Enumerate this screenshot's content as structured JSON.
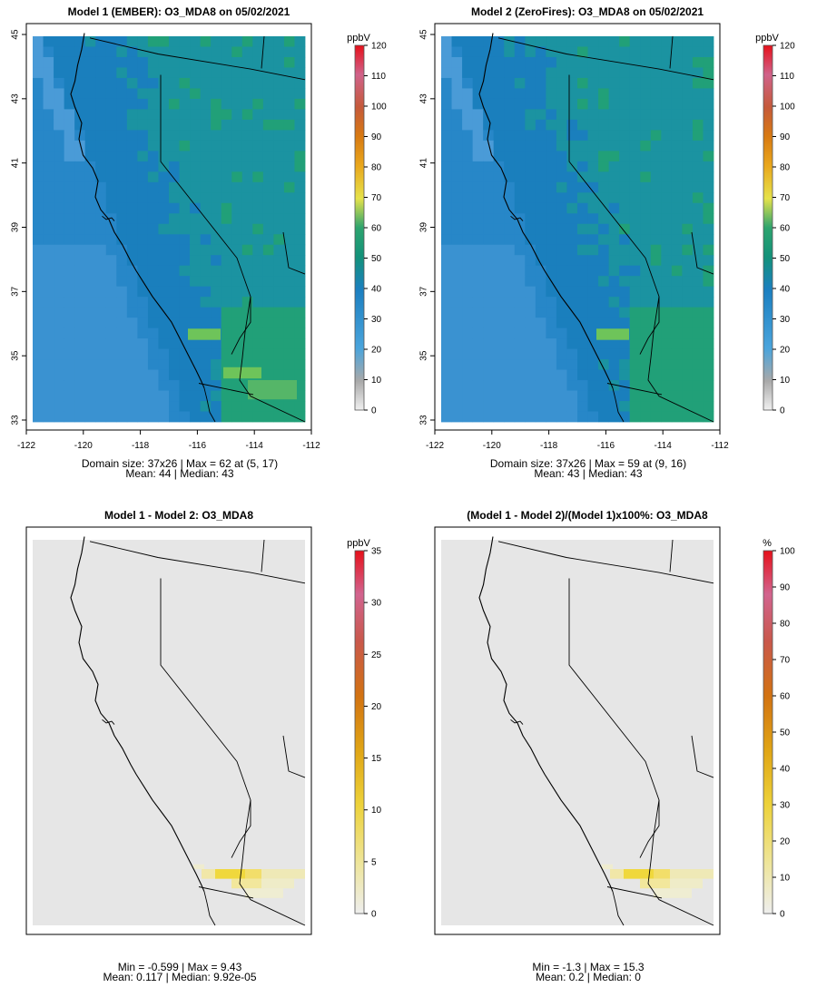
{
  "panels": [
    {
      "id": "p1",
      "title": "Model 1 (EMBER): O3_MDA8 on 05/02/2021",
      "type": "field",
      "stats_line1": "Domain size: 37x26 | Max = 62 at (5, 17)",
      "stats_line2": "Mean: 44 |  Median: 43",
      "show_axes": true,
      "legend": {
        "unit": "ppbV",
        "ticks": [
          "0",
          "10",
          "20",
          "30",
          "40",
          "50",
          "60",
          "70",
          "80",
          "90",
          "100",
          "110",
          "120"
        ],
        "range": [
          0,
          120
        ],
        "palette": "full"
      }
    },
    {
      "id": "p2",
      "title": "Model 2 (ZeroFires): O3_MDA8 on 05/02/2021",
      "type": "field",
      "stats_line1": "Domain size: 37x26 | Max = 59 at (9, 16)",
      "stats_line2": "Mean: 43 |  Median: 43",
      "show_axes": true,
      "legend": {
        "unit": "ppbV",
        "ticks": [
          "0",
          "10",
          "20",
          "30",
          "40",
          "50",
          "60",
          "70",
          "80",
          "90",
          "100",
          "110",
          "120"
        ],
        "range": [
          0,
          120
        ],
        "palette": "full"
      }
    },
    {
      "id": "p3",
      "title": "Model 1 - Model 2: O3_MDA8",
      "type": "diff",
      "stats_line1": "Min = -0.599 | Max = 9.43",
      "stats_line2": "Mean: 0.117 |  Median: 9.92e-05",
      "show_axes": false,
      "legend": {
        "unit": "ppbV",
        "ticks": [
          "0",
          "5",
          "10",
          "15",
          "20",
          "25",
          "30",
          "35"
        ],
        "range": [
          0,
          35
        ],
        "palette": "warm"
      }
    },
    {
      "id": "p4",
      "title": "(Model 1 - Model 2)/(Model 1)x100%: O3_MDA8",
      "type": "diff",
      "stats_line1": "Min = -1.3 | Max = 15.3",
      "stats_line2": "Mean: 0.2 |  Median: 0",
      "show_axes": false,
      "legend": {
        "unit": "%",
        "ticks": [
          "0",
          "10",
          "20",
          "30",
          "40",
          "50",
          "60",
          "70",
          "80",
          "90",
          "100"
        ],
        "range": [
          0,
          100
        ],
        "palette": "warm"
      }
    }
  ],
  "axes": {
    "lon_ticks": [
      "-122",
      "-120",
      "-118",
      "-116",
      "-114",
      "-112"
    ],
    "lat_ticks": [
      "33",
      "35",
      "37",
      "39",
      "41",
      "43",
      "45"
    ],
    "lon_range": [
      -122,
      -112
    ],
    "lat_range": [
      33,
      45
    ]
  },
  "colors": {
    "ocean": "#2787c8",
    "ocean_light": "#3a92d1",
    "land_base": "#1a7fbd",
    "land_green": "#21a078",
    "land_mid": "#1b93a1",
    "hotspot": "#6ec45a",
    "diff_background": "#e6e6e6",
    "diff_hot": "#f2d630",
    "border": "#000000"
  }
}
